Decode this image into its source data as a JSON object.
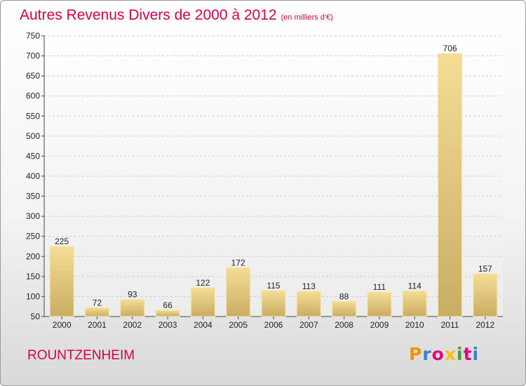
{
  "header": {
    "title": "Autres Revenus Divers de 2000 à 2012",
    "unit": "(en milliers d'€)"
  },
  "footer": {
    "commune": "ROUNTZENHEIM",
    "logo_letters": [
      "P",
      "r",
      "o",
      "x",
      "i",
      "t",
      "i"
    ],
    "logo_colors": [
      "#f29400",
      "#3a7fd0",
      "#e5007d",
      "#f2c300",
      "#3aa535",
      "#e5007d",
      "#3a7fd0"
    ]
  },
  "colors": {
    "title": "#d4004a",
    "bar_light": "#f5dd95",
    "bar_dark": "#c9ad63",
    "grid": "#cccccc"
  },
  "chart_data": {
    "type": "bar",
    "categories": [
      "2000",
      "2001",
      "2002",
      "2003",
      "2004",
      "2005",
      "2006",
      "2007",
      "2008",
      "2009",
      "2010",
      "2011",
      "2012"
    ],
    "values": [
      225,
      72,
      93,
      66,
      122,
      172,
      115,
      113,
      88,
      111,
      114,
      706,
      157
    ],
    "ylim": [
      50,
      750
    ],
    "yticks": [
      50,
      100,
      150,
      200,
      250,
      300,
      350,
      400,
      450,
      500,
      550,
      600,
      650,
      700,
      750
    ],
    "grid": true,
    "legend": "none"
  }
}
